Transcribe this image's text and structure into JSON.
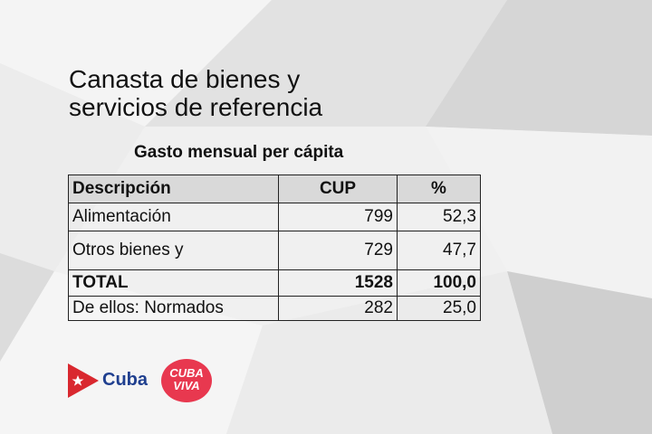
{
  "slide": {
    "title_line1": "Canasta de bienes y",
    "title_line2": "servicios de referencia",
    "subtitle": "Gasto mensual per cápita"
  },
  "table": {
    "headers": [
      "Descripción",
      "CUP",
      "%"
    ],
    "rows": [
      {
        "label": "Alimentación",
        "cup": "799",
        "pct": "52,3"
      },
      {
        "label": "Otros bienes y",
        "cup": "729",
        "pct": "47,7"
      },
      {
        "label": "TOTAL",
        "cup": "1528",
        "pct": "100,0"
      },
      {
        "label": "De ellos: Normados",
        "cup": "282",
        "pct": "25,0"
      }
    ]
  },
  "logos": {
    "cuba": "Cuba",
    "viva_line1": "CUBA",
    "viva_line2": "VIVA"
  },
  "colors": {
    "background": "#e9e9e9",
    "header_fill": "#d9d9d9",
    "cuba_red": "#d9282f",
    "cuba_blue": "#1f3f8f",
    "viva_pink": "#e8384f"
  }
}
